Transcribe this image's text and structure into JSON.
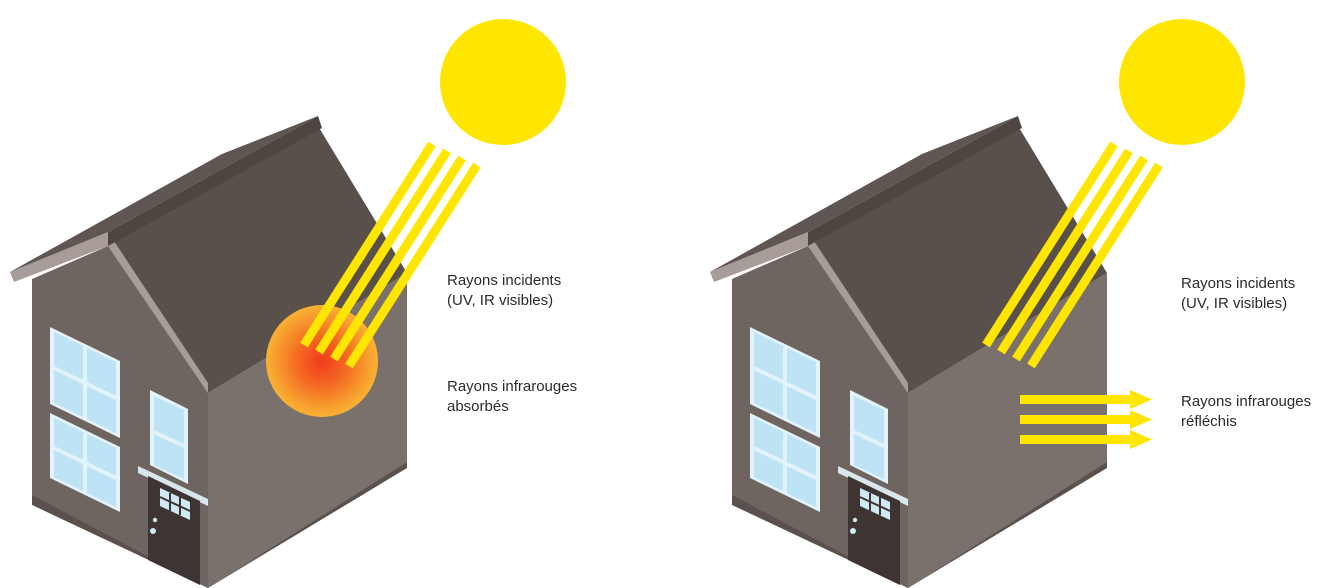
{
  "panels": [
    {
      "id": "absorbing",
      "incident_label": [
        "Rayons incidents",
        "(UV, IR visibles)"
      ],
      "effect_label": [
        "Rayons infrarouges",
        "absorbés"
      ]
    },
    {
      "id": "reflecting",
      "incident_label": [
        "Rayons incidents",
        "(UV, IR visibles)"
      ],
      "effect_label": [
        "Rayons infrarouges",
        "réfléchis"
      ]
    }
  ],
  "colors": {
    "sun": "#FFE600",
    "ray": "#FFE600",
    "roof": "#5A504C",
    "wall_front": "#6E6460",
    "wall_side": "#7D726D",
    "window_glass": "#CDEBF8",
    "door": "#3F3633",
    "absorption_glow_center": "#F23A1F",
    "absorption_glow_edge": "#F9B233"
  }
}
